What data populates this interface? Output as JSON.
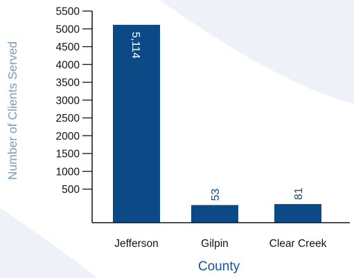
{
  "chart_data": {
    "type": "bar",
    "categories": [
      "Jefferson",
      "Gilpin",
      "Clear Creek"
    ],
    "values": [
      5114,
      53,
      81
    ],
    "value_labels": [
      "5,114",
      "53",
      "81"
    ],
    "xlabel": "County",
    "ylabel": "Number of Clients Served",
    "ylim": [
      0,
      5500
    ],
    "yticks": [
      500,
      1000,
      1500,
      2000,
      2500,
      3000,
      3500,
      4000,
      4500,
      5000,
      5500
    ],
    "grid": false,
    "legend": "none",
    "colors": {
      "bar": "#0b4a86",
      "axis": "#111111",
      "ylabel": "#7a9cc6",
      "xlabel": "#15549a",
      "label_inside": "#ffffff",
      "label_outside": "#0b4a86",
      "background_shape": "#e9eef6"
    }
  }
}
